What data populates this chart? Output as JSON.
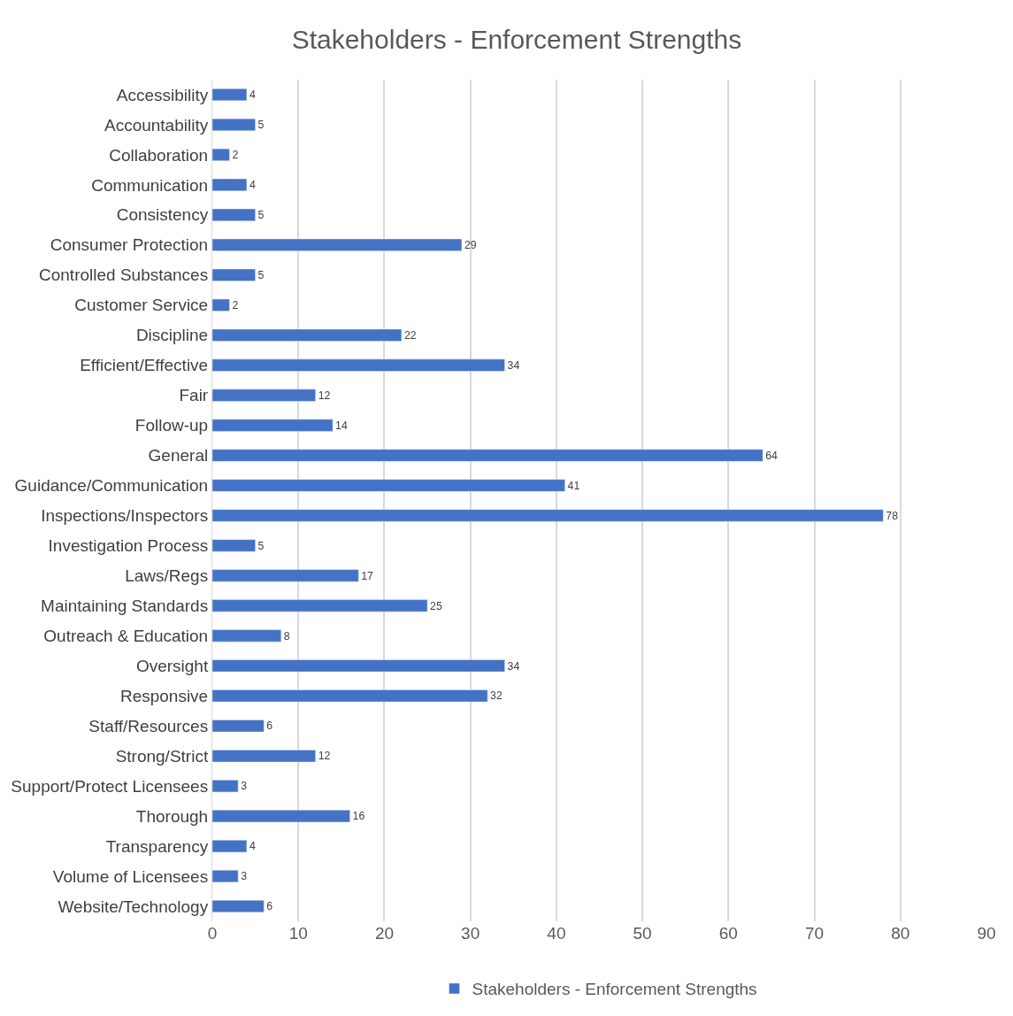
{
  "chart_data": {
    "type": "bar",
    "orientation": "horizontal",
    "title": "Stakeholders - Enforcement Strengths",
    "categories": [
      "Accessibility",
      "Accountability",
      "Collaboration",
      "Communication",
      "Consistency",
      "Consumer Protection",
      "Controlled Substances",
      "Customer Service",
      "Discipline",
      "Efficient/Effective",
      "Fair",
      "Follow-up",
      "General",
      "Guidance/Communication",
      "Inspections/Inspectors",
      "Investigation Process",
      "Laws/Regs",
      "Maintaining Standards",
      "Outreach & Education",
      "Oversight",
      "Responsive",
      "Staff/Resources",
      "Strong/Strict",
      "Support/Protect Licensees",
      "Thorough",
      "Transparency",
      "Volume of Licensees",
      "Website/Technology"
    ],
    "series": [
      {
        "name": "Stakeholders - Enforcement Strengths",
        "color": "#4472c4",
        "values": [
          4,
          5,
          2,
          4,
          5,
          29,
          5,
          2,
          22,
          34,
          12,
          14,
          64,
          41,
          78,
          5,
          17,
          25,
          8,
          34,
          32,
          6,
          12,
          3,
          16,
          4,
          3,
          6
        ]
      }
    ],
    "xlim": [
      0,
      90
    ],
    "xticks": [
      0,
      10,
      20,
      30,
      40,
      50,
      60,
      70,
      80,
      90
    ],
    "grid": "x",
    "legend": "bottom",
    "data_labels": true
  }
}
